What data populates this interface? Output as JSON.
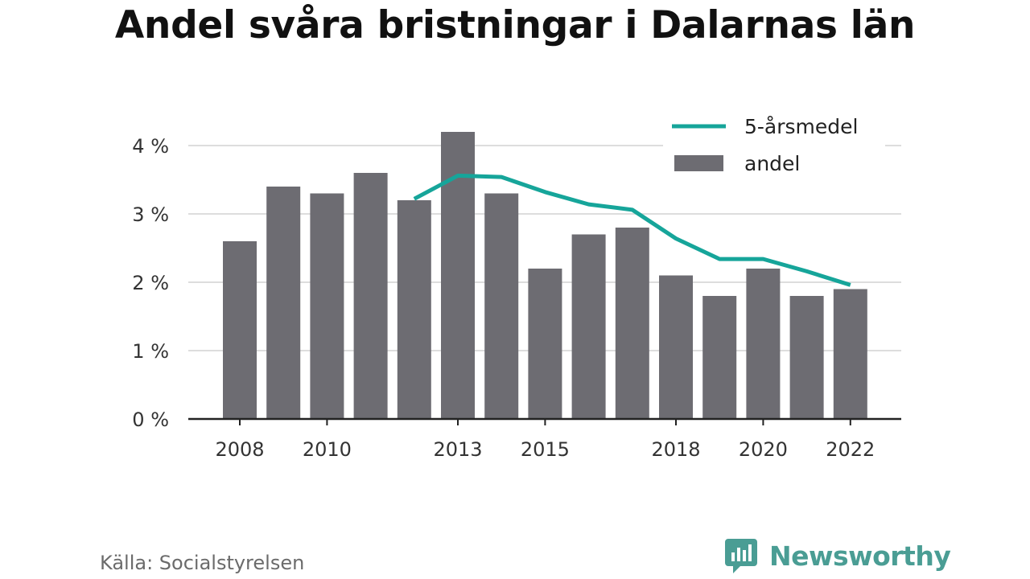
{
  "title": "Andel svåra bristningar i Dalarnas län",
  "source": "Källa: Socialstyrelsen",
  "brand": {
    "name": "Newsworthy",
    "icon": "newsworthy-logo-icon",
    "color": "#4a9d94"
  },
  "colors": {
    "bar": "#6d6c72",
    "line": "#16a59a",
    "grid": "#dddddd",
    "axis": "#222222"
  },
  "chart_data": {
    "type": "bar",
    "title": "Andel svåra bristningar i Dalarnas län",
    "xlabel": "",
    "ylabel": "",
    "categories": [
      "2008",
      "2009",
      "2010",
      "2011",
      "2012",
      "2013",
      "2014",
      "2015",
      "2016",
      "2017",
      "2018",
      "2019",
      "2020",
      "2021",
      "2022"
    ],
    "x_tick_labels": [
      "2008",
      "2010",
      "2013",
      "2015",
      "2018",
      "2020",
      "2022"
    ],
    "y_ticks": [
      0,
      1,
      2,
      3,
      4
    ],
    "y_tick_format": "%",
    "ylim": [
      0,
      4.2
    ],
    "grid": true,
    "legend_position": "top-right",
    "series": [
      {
        "name": "andel",
        "type": "bar",
        "values": [
          2.6,
          3.4,
          3.3,
          3.6,
          3.2,
          4.2,
          3.3,
          2.2,
          2.7,
          2.8,
          2.1,
          1.8,
          2.2,
          1.8,
          1.9
        ]
      },
      {
        "name": "5-årsmedel",
        "type": "line",
        "values": [
          null,
          null,
          null,
          null,
          3.22,
          3.56,
          3.54,
          3.32,
          3.14,
          3.06,
          2.64,
          2.34,
          2.34,
          2.16,
          1.96
        ]
      }
    ]
  }
}
